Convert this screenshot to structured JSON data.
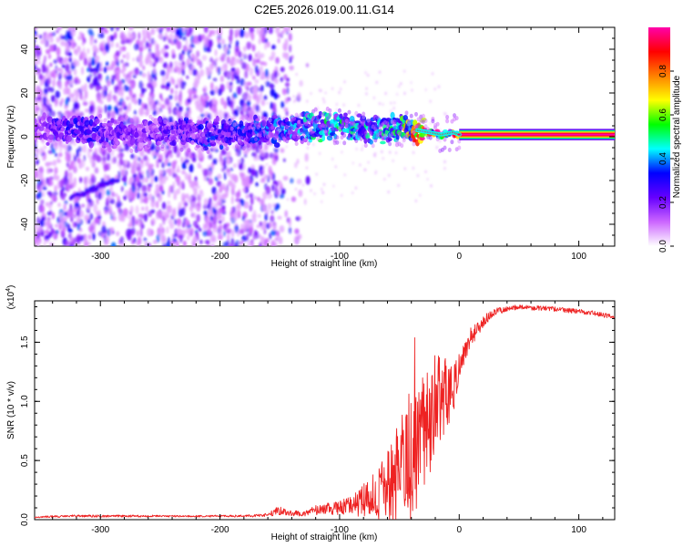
{
  "title": "C2E5.2026.019.00.11.G14",
  "chart_data": [
    {
      "type": "heatmap",
      "xlabel": "Height of straight line (km)",
      "ylabel": "Frequency (Hz)",
      "xlim": [
        -355,
        130
      ],
      "ylim": [
        -50,
        50
      ],
      "xticks": [
        -300,
        -200,
        -100,
        0,
        100
      ],
      "yticks": [
        -40,
        -20,
        0,
        20,
        40
      ],
      "colorbar": {
        "label": "Normalized spectral amplitude",
        "range": [
          0.0,
          1.0
        ],
        "ticks": [
          0.0,
          0.2,
          0.4,
          0.6,
          0.8
        ],
        "colormap": [
          "#ffffff",
          "#cc66ff",
          "#6600ff",
          "#0000ff",
          "#00ffff",
          "#00ff00",
          "#ffff00",
          "#ff8000",
          "#ff0000",
          "#ff00aa"
        ]
      },
      "ridge": {
        "x": [
          -350,
          -330,
          -300,
          -270,
          -240,
          -210,
          -180,
          -150,
          -130,
          -110,
          -90,
          -70,
          -50,
          -35,
          -25,
          -15,
          -5,
          0,
          130
        ],
        "frequency": [
          3,
          4,
          2,
          1,
          2,
          1,
          2,
          3,
          4,
          5,
          4,
          3,
          4,
          3,
          2,
          1,
          2,
          1,
          1
        ],
        "amplitude": [
          0.15,
          0.3,
          0.25,
          0.2,
          0.25,
          0.3,
          0.3,
          0.35,
          0.4,
          0.45,
          0.45,
          0.4,
          0.5,
          0.8,
          0.9,
          0.85,
          0.9,
          1.0,
          1.0
        ]
      }
    },
    {
      "type": "line",
      "xlabel": "Height of straight line (km)",
      "ylabel": "SNR (10 * v/v)",
      "y_multiplier": "(x10",
      "y_multiplier_exp": "4",
      "y_multiplier_close": ")",
      "xlim": [
        -355,
        130
      ],
      "ylim": [
        0,
        1.85
      ],
      "xticks": [
        -300,
        -200,
        -100,
        0,
        100
      ],
      "yticks": [
        0.0,
        0.5,
        1.0,
        1.5
      ],
      "ytick_labels": [
        "0.0",
        "0.5",
        "1.0",
        "1.5"
      ],
      "color": "#ee2222",
      "series": [
        {
          "x": [
            -355,
            -330,
            -300,
            -250,
            -200,
            -180,
            -160,
            -150,
            -140,
            -130,
            -120,
            -110,
            -100,
            -90,
            -80,
            -70,
            -60,
            -50,
            -40,
            -30,
            -25,
            -20,
            -15,
            -10,
            -5,
            0,
            5,
            10,
            15,
            20,
            25,
            30,
            40,
            50,
            60,
            70,
            80,
            90,
            100,
            110,
            120,
            130
          ],
          "y": [
            0.02,
            0.03,
            0.03,
            0.03,
            0.03,
            0.03,
            0.04,
            0.08,
            0.05,
            0.06,
            0.08,
            0.09,
            0.1,
            0.12,
            0.16,
            0.2,
            0.28,
            0.4,
            0.55,
            0.7,
            0.8,
            0.95,
            1.05,
            1.05,
            1.1,
            1.3,
            1.45,
            1.55,
            1.6,
            1.68,
            1.72,
            1.76,
            1.78,
            1.8,
            1.79,
            1.79,
            1.78,
            1.77,
            1.76,
            1.75,
            1.73,
            1.71
          ],
          "spread": [
            0.005,
            0.01,
            0.01,
            0.008,
            0.008,
            0.01,
            0.015,
            0.04,
            0.02,
            0.03,
            0.04,
            0.05,
            0.06,
            0.08,
            0.14,
            0.2,
            0.3,
            0.45,
            0.55,
            0.55,
            0.5,
            0.45,
            0.35,
            0.3,
            0.2,
            0.15,
            0.1,
            0.08,
            0.06,
            0.05,
            0.04,
            0.03,
            0.02,
            0.02,
            0.02,
            0.02,
            0.02,
            0.02,
            0.02,
            0.02,
            0.02,
            0.02
          ]
        }
      ]
    }
  ]
}
